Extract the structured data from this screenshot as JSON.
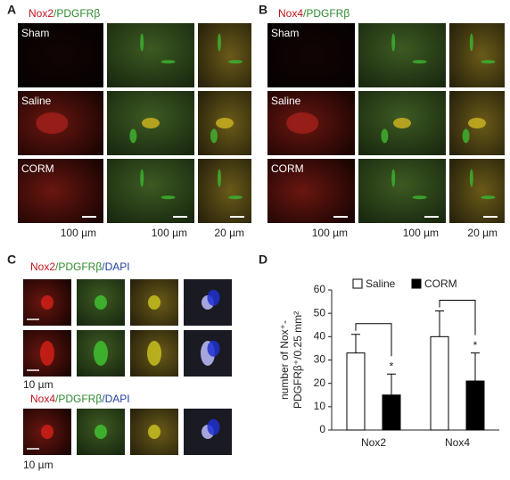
{
  "panel_a": {
    "letter": "A",
    "title": [
      "Nox2",
      "/PDGFRβ"
    ],
    "rows": [
      "Sham",
      "Saline",
      "CORM"
    ],
    "scale_labels": [
      "100 µm",
      "100 µm",
      "20 µm"
    ]
  },
  "panel_b": {
    "letter": "B",
    "title": [
      "Nox4",
      "/PDGFRβ"
    ],
    "rows": [
      "Sham",
      "Saline",
      "CORM"
    ],
    "scale_labels": [
      "100 µm",
      "100 µm",
      "20 µm"
    ]
  },
  "panel_c": {
    "letter": "C",
    "groups": [
      {
        "title": [
          "Nox2",
          "/PDGFRβ",
          "/DAPI"
        ],
        "scale_label": "10 µm"
      },
      {
        "title": [
          "Nox4",
          "/PDGFRβ",
          "/DAPI"
        ],
        "scale_label": "10 µm"
      }
    ]
  },
  "chart_data": {
    "letter": "D",
    "type": "bar",
    "categories": [
      "Nox2",
      "Nox4"
    ],
    "series": [
      {
        "name": "Saline",
        "color": "#ffffff",
        "values": [
          33,
          40
        ],
        "errors": [
          8,
          11
        ]
      },
      {
        "name": "CORM",
        "color": "#000000",
        "values": [
          15,
          21
        ],
        "errors": [
          9,
          12
        ]
      }
    ],
    "y_label": [
      "number of Nox⁺-",
      "PDGFRβ⁺/0.25 mm²"
    ],
    "annotations": [
      "*",
      "*"
    ],
    "ylim": [
      0,
      60
    ],
    "yticks": [
      0,
      10,
      20,
      30,
      40,
      50,
      60
    ]
  }
}
